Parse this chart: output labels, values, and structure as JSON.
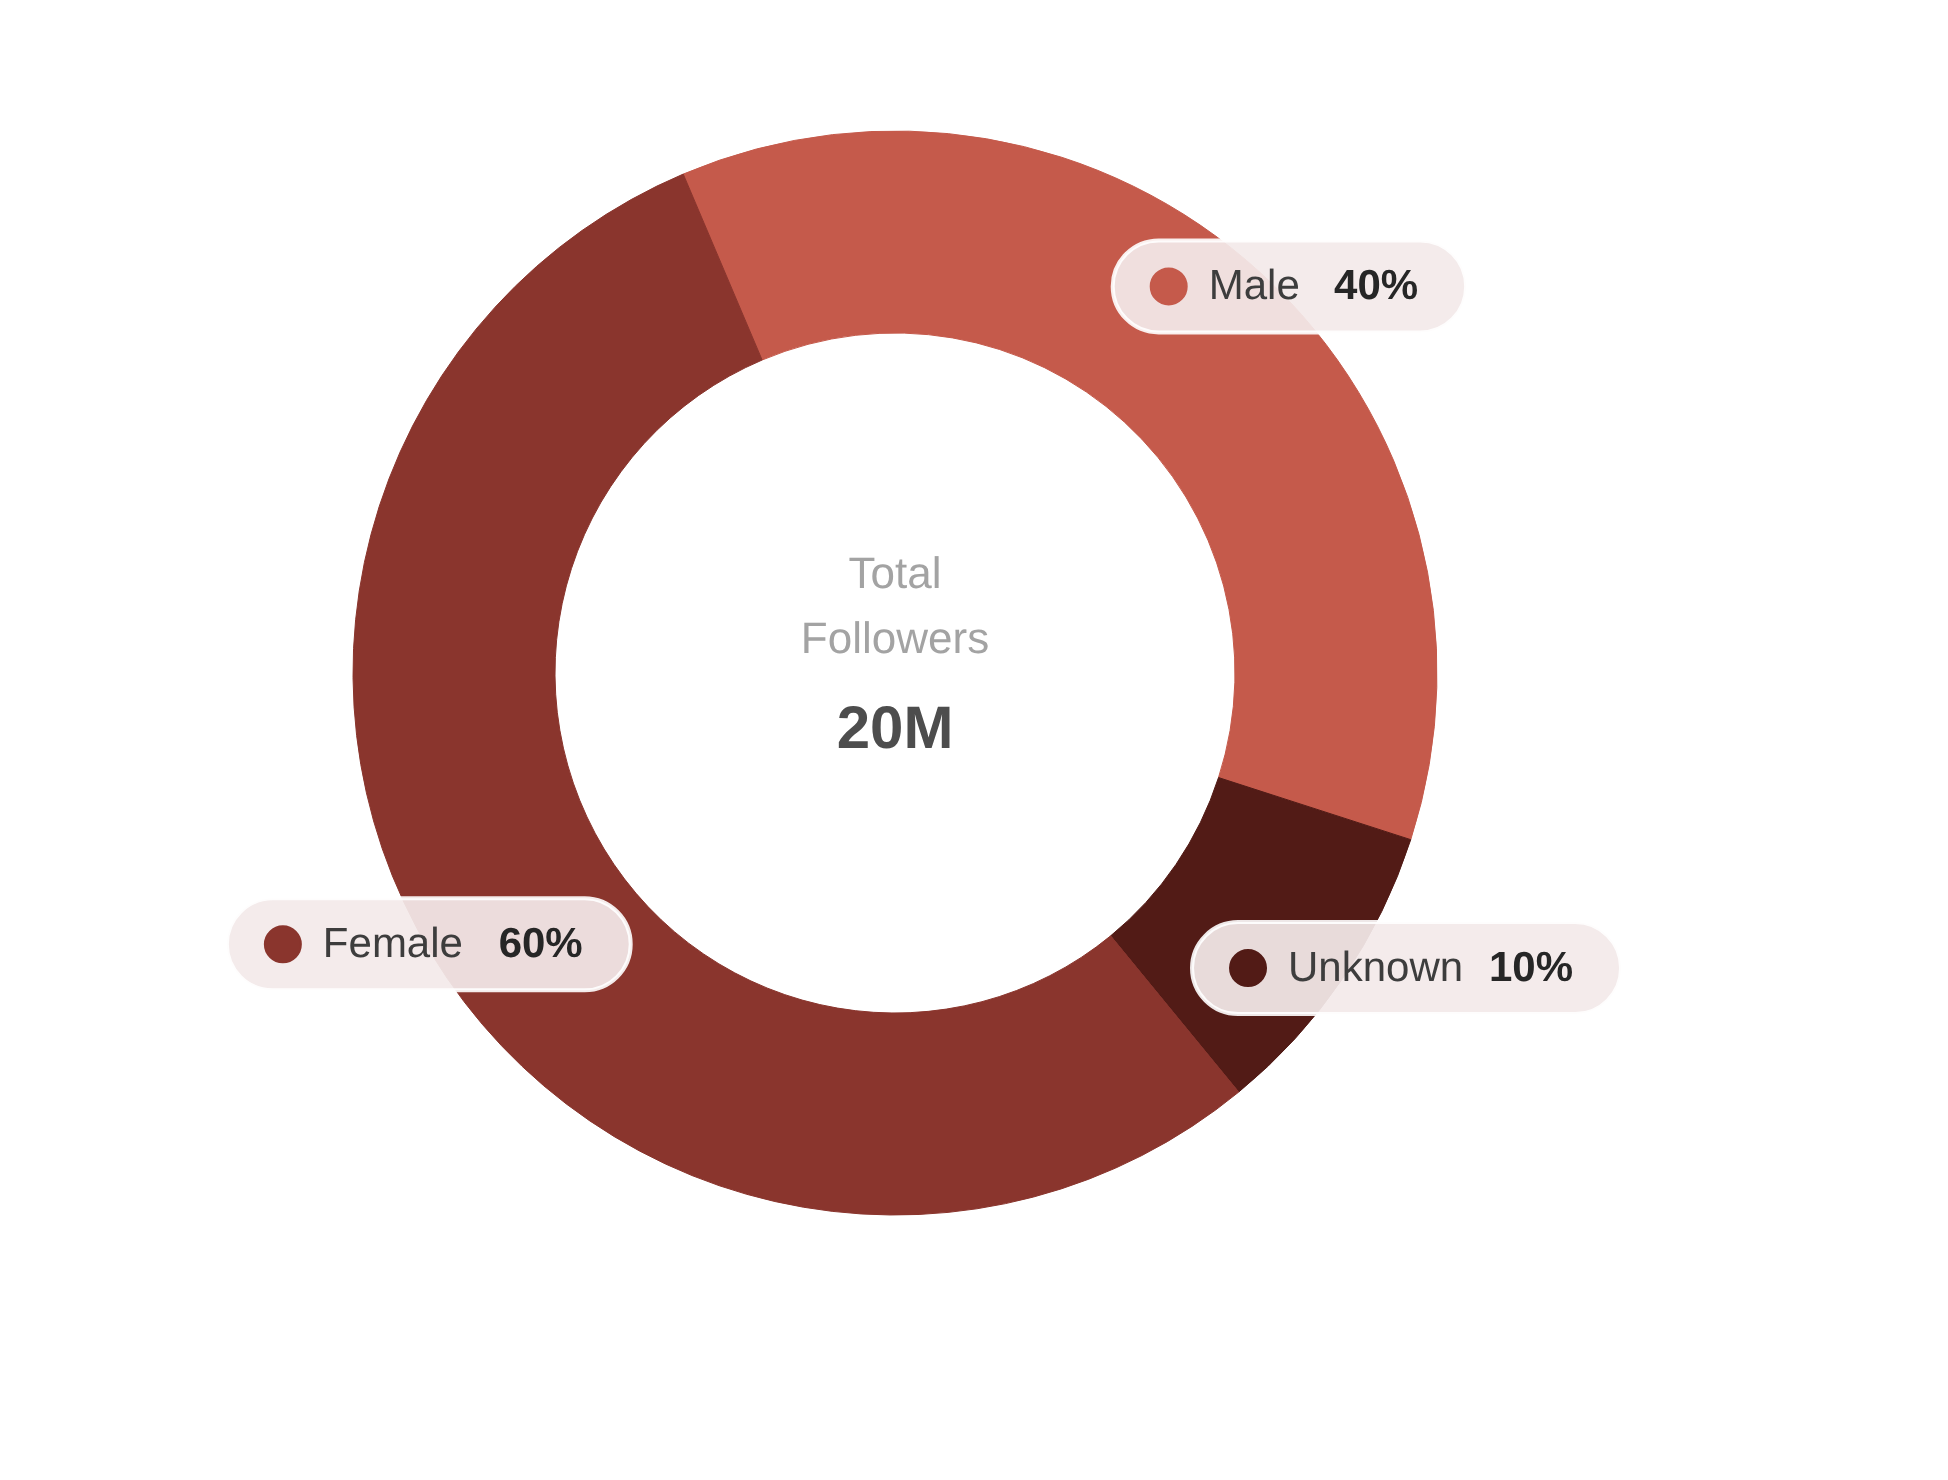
{
  "chart_data": {
    "type": "donut",
    "categories": [
      "Male",
      "Unknown",
      "Female"
    ],
    "values": [
      40,
      10,
      60
    ],
    "colors": [
      "#c55a4b",
      "#521b16",
      "#8a352d"
    ],
    "value_labels": [
      "40%",
      "10%",
      "60%"
    ],
    "legend": "right",
    "annotations": [
      "Total Followers",
      "20M"
    ]
  }
}
